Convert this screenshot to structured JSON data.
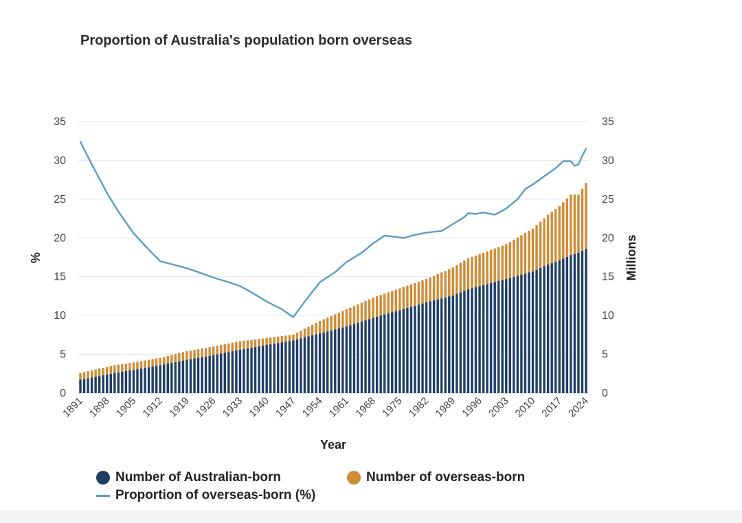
{
  "chart_data": {
    "type": "bar",
    "title": "Proportion of Australia's population born overseas",
    "xlabel": "Year",
    "ylabel_left": "%",
    "ylabel_right": "Millions",
    "ylim_left": [
      0,
      35
    ],
    "ylim_right": [
      0,
      35
    ],
    "yticks": [
      0,
      5,
      10,
      15,
      20,
      25,
      30,
      35
    ],
    "xlim": [
      1891,
      2024
    ],
    "xticks": [
      1891,
      1898,
      1905,
      1912,
      1919,
      1926,
      1933,
      1940,
      1947,
      1954,
      1961,
      1968,
      1975,
      1982,
      1989,
      1996,
      2003,
      2010,
      2017,
      2024
    ],
    "grid": true,
    "legend_position": "bottom",
    "bar_series": [
      {
        "name": "Number of Australian-born",
        "color": "#1f3e66",
        "key": "australian_born"
      },
      {
        "name": "Number of overseas-born",
        "color": "#d08c36",
        "key": "overseas_born"
      }
    ],
    "line_series": {
      "name": "Proportion of overseas-born (%)",
      "color": "#5b9bc4"
    },
    "stack_anchors": {
      "year": [
        1891,
        1895,
        1900,
        1905,
        1912,
        1919,
        1926,
        1933,
        1940,
        1947,
        1950,
        1954,
        1961,
        1968,
        1972,
        1975,
        1982,
        1989,
        1993,
        1996,
        2003,
        2010,
        2014,
        2017,
        2020,
        2022,
        2024
      ],
      "australian_born": [
        1.75,
        2.1,
        2.6,
        3.0,
        3.6,
        4.3,
        4.9,
        5.6,
        6.2,
        6.8,
        7.2,
        7.7,
        8.6,
        9.7,
        10.3,
        10.7,
        11.7,
        12.6,
        13.4,
        13.8,
        14.7,
        15.7,
        16.6,
        17.1,
        17.8,
        18.1,
        18.6
      ],
      "overseas_born": [
        0.85,
        0.95,
        1.0,
        0.95,
        0.95,
        1.1,
        1.1,
        1.1,
        0.9,
        0.75,
        1.1,
        1.6,
        2.2,
        2.6,
        2.7,
        2.8,
        3.0,
        3.6,
        4.0,
        4.1,
        4.5,
        5.5,
        6.4,
        7.0,
        7.8,
        7.5,
        8.5
      ]
    },
    "proportion": {
      "year": [
        1891,
        1894,
        1898,
        1901,
        1905,
        1909,
        1912,
        1916,
        1919,
        1922,
        1926,
        1930,
        1933,
        1936,
        1940,
        1944,
        1947,
        1950,
        1954,
        1958,
        1961,
        1965,
        1968,
        1971,
        1973,
        1976,
        1979,
        1982,
        1986,
        1989,
        1992,
        1993,
        1995,
        1997,
        2000,
        2003,
        2006,
        2008,
        2010,
        2012,
        2014,
        2016,
        2018,
        2020,
        2021,
        2022,
        2023,
        2024
      ],
      "value": [
        32.4,
        29.5,
        25.8,
        23.4,
        20.6,
        18.5,
        17.0,
        16.5,
        16.1,
        15.6,
        14.9,
        14.3,
        13.8,
        13.0,
        11.8,
        10.8,
        9.8,
        11.8,
        14.3,
        15.6,
        16.9,
        18.1,
        19.3,
        20.3,
        20.2,
        20.0,
        20.4,
        20.7,
        20.9,
        21.8,
        22.7,
        23.2,
        23.1,
        23.3,
        23.0,
        23.8,
        25.0,
        26.3,
        26.9,
        27.6,
        28.3,
        29.0,
        29.9,
        29.9,
        29.3,
        29.5,
        30.6,
        31.5
      ]
    }
  }
}
